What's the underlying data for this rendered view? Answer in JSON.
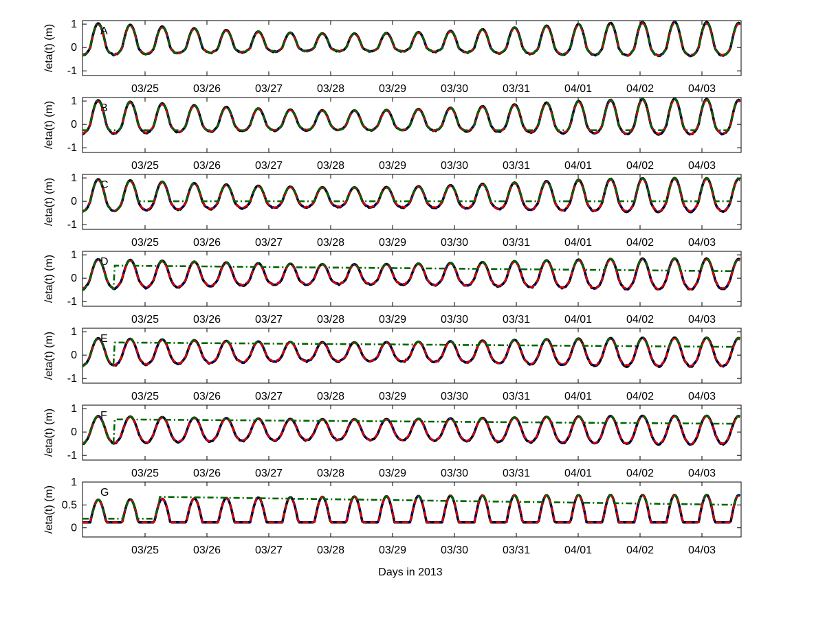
{
  "chart_data": {
    "type": "line",
    "xlabel": "Days in 2013",
    "x_ticks": [
      "03/25",
      "03/26",
      "03/27",
      "03/28",
      "03/29",
      "03/30",
      "03/31",
      "04/01",
      "04/02",
      "04/03"
    ],
    "x_domain": [
      "03/24 04:00",
      "04/03 20:00"
    ],
    "grid": false,
    "legend": "none",
    "series_colors": [
      "#000000",
      "#0000cc",
      "#dd0000",
      "#006400"
    ],
    "series_styles": [
      "solid thick",
      "dotted",
      "dashed",
      "dash-dot"
    ],
    "tide_period_hours": 12.42,
    "panels": [
      {
        "label": "A",
        "ylabel": "/eta(t) (m)",
        "yticks": [
          "1",
          "0",
          "-1"
        ],
        "ylim": [
          -1.2,
          1.15
        ],
        "peaks_approx": [
          0.6,
          1.1
        ],
        "troughs_approx": [
          -0.5,
          -0.1
        ]
      },
      {
        "label": "B",
        "ylabel": "/eta(t) (m)",
        "yticks": [
          "1",
          "0",
          "-1"
        ],
        "ylim": [
          -1.2,
          1.15
        ],
        "peaks_approx": [
          0.6,
          1.1
        ],
        "troughs_approx": [
          -0.55,
          -0.2
        ]
      },
      {
        "label": "C",
        "ylabel": "/eta(t) (m)",
        "yticks": [
          "1",
          "0",
          "-1"
        ],
        "ylim": [
          -1.2,
          1.15
        ],
        "peaks_approx": [
          0.6,
          1.0
        ],
        "troughs_approx": [
          -0.6,
          -0.2
        ],
        "green_floor_approx": 0.0
      },
      {
        "label": "D",
        "ylabel": "/eta(t) (m)",
        "yticks": [
          "1",
          "0",
          "-1"
        ],
        "ylim": [
          -1.2,
          1.15
        ],
        "peaks_approx": [
          0.6,
          0.85
        ],
        "troughs_approx": [
          -0.65,
          -0.2
        ],
        "green_baseline_approx": [
          0.6,
          0.35
        ]
      },
      {
        "label": "E",
        "ylabel": "/eta(t) (m)",
        "yticks": [
          "1",
          "0",
          "-1"
        ],
        "ylim": [
          -1.2,
          1.15
        ],
        "peaks_approx": [
          0.55,
          0.75
        ],
        "troughs_approx": [
          -0.65,
          -0.2
        ],
        "green_baseline_approx": [
          0.6,
          0.4
        ]
      },
      {
        "label": "F",
        "ylabel": "/eta(t) (m)",
        "yticks": [
          "1",
          "0",
          "-1"
        ],
        "ylim": [
          -1.2,
          1.15
        ],
        "peaks_approx": [
          0.55,
          0.7
        ],
        "troughs_approx": [
          -0.65,
          -0.3
        ],
        "green_baseline_approx": [
          0.6,
          0.4
        ]
      },
      {
        "label": "G",
        "ylabel": "/eta(t) (m)",
        "yticks": [
          "1",
          "0.5",
          "0"
        ],
        "ylim": [
          -0.2,
          1.0
        ],
        "peaks_approx": [
          0.5,
          0.72
        ],
        "troughs_approx": [
          0.12,
          0.12
        ],
        "green_baseline_approx": [
          0.7,
          0.5
        ]
      }
    ]
  }
}
